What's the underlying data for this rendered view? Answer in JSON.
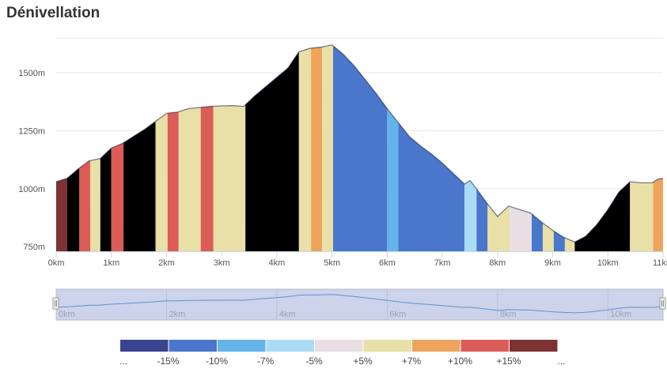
{
  "title": "Dénivellation",
  "chart_data": {
    "type": "area",
    "title": "Dénivellation",
    "xlabel": "",
    "ylabel": "",
    "xlim": [
      0,
      11
    ],
    "ylim": [
      730,
      1650
    ],
    "x_ticks": [
      {
        "value": 0,
        "label": "0km"
      },
      {
        "value": 1,
        "label": "1km"
      },
      {
        "value": 2,
        "label": "2km"
      },
      {
        "value": 3,
        "label": "3km"
      },
      {
        "value": 4,
        "label": "4km"
      },
      {
        "value": 5,
        "label": "5km"
      },
      {
        "value": 6,
        "label": "6km"
      },
      {
        "value": 7,
        "label": "7km"
      },
      {
        "value": 8,
        "label": "8km"
      },
      {
        "value": 9,
        "label": "9km"
      },
      {
        "value": 10,
        "label": "10km"
      },
      {
        "value": 11,
        "label": "11km"
      }
    ],
    "y_ticks": [
      {
        "value": 750,
        "label": "750m"
      },
      {
        "value": 1000,
        "label": "1000m"
      },
      {
        "value": 1250,
        "label": "1250m"
      },
      {
        "value": 1500,
        "label": "1500m"
      }
    ],
    "profile": [
      [
        0.0,
        1030
      ],
      [
        0.2,
        1045
      ],
      [
        0.4,
        1085
      ],
      [
        0.6,
        1120
      ],
      [
        0.8,
        1130
      ],
      [
        1.0,
        1175
      ],
      [
        1.2,
        1195
      ],
      [
        1.4,
        1225
      ],
      [
        1.6,
        1255
      ],
      [
        1.8,
        1290
      ],
      [
        2.0,
        1325
      ],
      [
        2.2,
        1330
      ],
      [
        2.4,
        1345
      ],
      [
        2.6,
        1350
      ],
      [
        2.8,
        1355
      ],
      [
        3.0,
        1357
      ],
      [
        3.2,
        1358
      ],
      [
        3.4,
        1355
      ],
      [
        3.6,
        1400
      ],
      [
        3.8,
        1440
      ],
      [
        4.0,
        1480
      ],
      [
        4.2,
        1520
      ],
      [
        4.4,
        1590
      ],
      [
        4.6,
        1605
      ],
      [
        4.8,
        1610
      ],
      [
        5.0,
        1620
      ],
      [
        5.2,
        1580
      ],
      [
        5.4,
        1530
      ],
      [
        5.6,
        1470
      ],
      [
        5.8,
        1410
      ],
      [
        6.0,
        1345
      ],
      [
        6.2,
        1285
      ],
      [
        6.4,
        1225
      ],
      [
        6.6,
        1185
      ],
      [
        6.8,
        1150
      ],
      [
        7.0,
        1110
      ],
      [
        7.2,
        1065
      ],
      [
        7.4,
        1020
      ],
      [
        7.5,
        1035
      ],
      [
        7.6,
        1005
      ],
      [
        7.8,
        940
      ],
      [
        8.0,
        880
      ],
      [
        8.2,
        925
      ],
      [
        8.4,
        910
      ],
      [
        8.6,
        895
      ],
      [
        8.8,
        855
      ],
      [
        9.0,
        820
      ],
      [
        9.2,
        790
      ],
      [
        9.4,
        770
      ],
      [
        9.6,
        795
      ],
      [
        9.8,
        845
      ],
      [
        10.0,
        910
      ],
      [
        10.2,
        985
      ],
      [
        10.4,
        1030
      ],
      [
        10.6,
        1025
      ],
      [
        10.8,
        1025
      ],
      [
        10.9,
        1040
      ],
      [
        11.0,
        1045
      ]
    ],
    "grade_segments": [
      {
        "from": 0.0,
        "to": 0.2,
        "class": 8
      },
      {
        "from": 0.2,
        "to": 0.42,
        "class": 9
      },
      {
        "from": 0.42,
        "to": 0.62,
        "class": 7
      },
      {
        "from": 0.62,
        "to": 0.8,
        "class": 5
      },
      {
        "from": 0.8,
        "to": 1.0,
        "class": 9
      },
      {
        "from": 1.0,
        "to": 1.22,
        "class": 7
      },
      {
        "from": 1.22,
        "to": 1.8,
        "class": 9
      },
      {
        "from": 1.8,
        "to": 2.02,
        "class": 5
      },
      {
        "from": 2.02,
        "to": 2.22,
        "class": 7
      },
      {
        "from": 2.22,
        "to": 2.62,
        "class": 5
      },
      {
        "from": 2.62,
        "to": 2.85,
        "class": 7
      },
      {
        "from": 2.85,
        "to": 3.43,
        "class": 5
      },
      {
        "from": 3.43,
        "to": 4.4,
        "class": 9
      },
      {
        "from": 4.4,
        "to": 4.62,
        "class": 5
      },
      {
        "from": 4.62,
        "to": 4.82,
        "class": 6
      },
      {
        "from": 4.82,
        "to": 5.02,
        "class": 5
      },
      {
        "from": 5.02,
        "to": 6.0,
        "class": 1
      },
      {
        "from": 6.0,
        "to": 6.2,
        "class": 2
      },
      {
        "from": 6.2,
        "to": 7.4,
        "class": 1
      },
      {
        "from": 7.4,
        "to": 7.62,
        "class": 3
      },
      {
        "from": 7.62,
        "to": 7.82,
        "class": 1
      },
      {
        "from": 7.82,
        "to": 8.22,
        "class": 5
      },
      {
        "from": 8.22,
        "to": 8.62,
        "class": 4
      },
      {
        "from": 8.62,
        "to": 8.82,
        "class": 1
      },
      {
        "from": 8.82,
        "to": 9.02,
        "class": 5
      },
      {
        "from": 9.02,
        "to": 9.22,
        "class": 1
      },
      {
        "from": 9.22,
        "to": 9.4,
        "class": 5
      },
      {
        "from": 9.4,
        "to": 10.4,
        "class": 9
      },
      {
        "from": 10.4,
        "to": 10.82,
        "class": 5
      },
      {
        "from": 10.82,
        "to": 11.0,
        "class": 6
      }
    ],
    "navigator": {
      "ticks": [
        {
          "value": 0,
          "label": "0km"
        },
        {
          "value": 2,
          "label": "2km"
        },
        {
          "value": 4,
          "label": "4km"
        },
        {
          "value": 6,
          "label": "6km"
        },
        {
          "value": 8,
          "label": "8km"
        },
        {
          "value": 10,
          "label": "10km"
        }
      ],
      "selection": [
        0,
        11
      ]
    },
    "legend": {
      "classes": [
        {
          "color": "#3a4490",
          "label": "..."
        },
        {
          "color": "#4a76cc",
          "label": "-15%"
        },
        {
          "color": "#64b4ea",
          "label": "-10%"
        },
        {
          "color": "#aadcf6",
          "label": "-7%"
        },
        {
          "color": "#e8dee4",
          "label": "-5%"
        },
        {
          "color": "#e8e0a6",
          "label": "+5%"
        },
        {
          "color": "#eea45c",
          "label": "+7%"
        },
        {
          "color": "#dc5c58",
          "label": "+10%"
        },
        {
          "color": "#7e3234",
          "label": "+15%"
        },
        {
          "color": "",
          "label": "..."
        }
      ]
    },
    "colors": {
      "gridline": "#e6e6e6",
      "axis": "#ccd6eb",
      "navigator_fill": "#ccd3ea",
      "navigator_line": "#5f93d3"
    }
  }
}
